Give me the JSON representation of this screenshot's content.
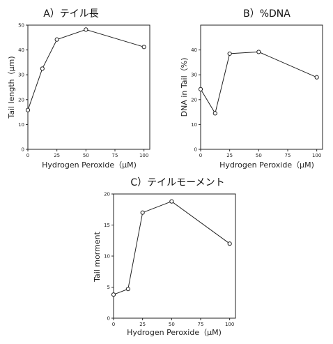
{
  "chart_data": [
    {
      "type": "line",
      "title": "A）テイル長",
      "xlabel": "Hydrogen Peroxide（μM)",
      "ylabel": "Tail length（μm)",
      "xlim": [
        0,
        105
      ],
      "ylim": [
        0,
        50
      ],
      "xticks": [
        0,
        25,
        50,
        75,
        100
      ],
      "yticks": [
        0,
        10,
        20,
        30,
        40,
        50
      ],
      "grid": false,
      "x": [
        0,
        12.5,
        25,
        50,
        100
      ],
      "y": [
        15.8,
        32.5,
        44.2,
        48.2,
        41.2
      ]
    },
    {
      "type": "line",
      "title": "B）%DNA",
      "xlabel": "Hydrogen Peroxide（μM)",
      "ylabel": "DNA in Tail（%)",
      "xlim": [
        0,
        105
      ],
      "ylim": [
        0,
        50
      ],
      "xticks": [
        0,
        25,
        50,
        75,
        100
      ],
      "yticks": [
        0,
        10,
        20,
        30,
        40
      ],
      "grid": false,
      "x": [
        0,
        12.5,
        25,
        50,
        100
      ],
      "y": [
        24.2,
        14.5,
        38.5,
        39.2,
        29.0
      ]
    },
    {
      "type": "line",
      "title": "C）テイルモーメント",
      "xlabel": "Hydrogen Peroxide（μM)",
      "ylabel": "Tail morment",
      "xlim": [
        0,
        105
      ],
      "ylim": [
        0,
        20
      ],
      "xticks": [
        0,
        25,
        50,
        75,
        100
      ],
      "yticks": [
        0,
        5,
        10,
        15,
        20
      ],
      "grid": false,
      "x": [
        0,
        12.5,
        25,
        50,
        100
      ],
      "y": [
        3.8,
        4.7,
        17.0,
        18.8,
        12.0
      ]
    }
  ]
}
